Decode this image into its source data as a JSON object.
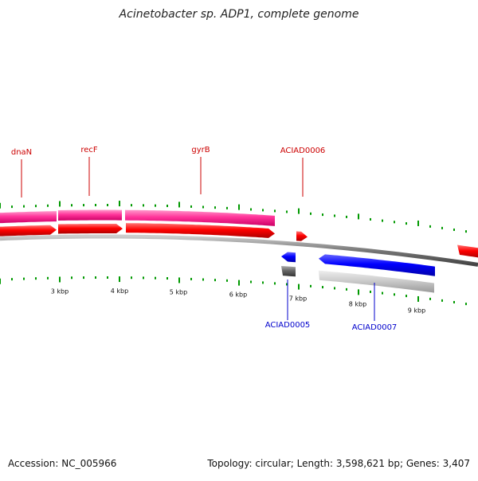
{
  "title": "Acinetobacter sp. ADP1, complete genome",
  "footer": {
    "accession": "Accession: NC_005966",
    "topology": "Topology: circular; Length: 3,598,621 bp; Genes: 3,407"
  },
  "colors": {
    "forward_cds": "#ff0000",
    "forward_gene": "#ff3399",
    "reverse_cds": "#0000ff",
    "reverse_gene_dark": "#666666",
    "reverse_gene_light": "#cccccc",
    "backbone": "#777777",
    "tick": "#009900",
    "forward_label": "#cc0000",
    "reverse_label": "#0000cc"
  },
  "scale": {
    "unit": "kbp",
    "labels": [
      "3 kbp",
      "4 kbp",
      "5 kbp",
      "6 kbp",
      "7 kbp",
      "8 kbp",
      "9 kbp"
    ]
  },
  "forward_labels": [
    "dnaN",
    "recF",
    "gyrB",
    "ACIAD0006"
  ],
  "reverse_labels": [
    "ACIAD0005",
    "ACIAD0007"
  ]
}
